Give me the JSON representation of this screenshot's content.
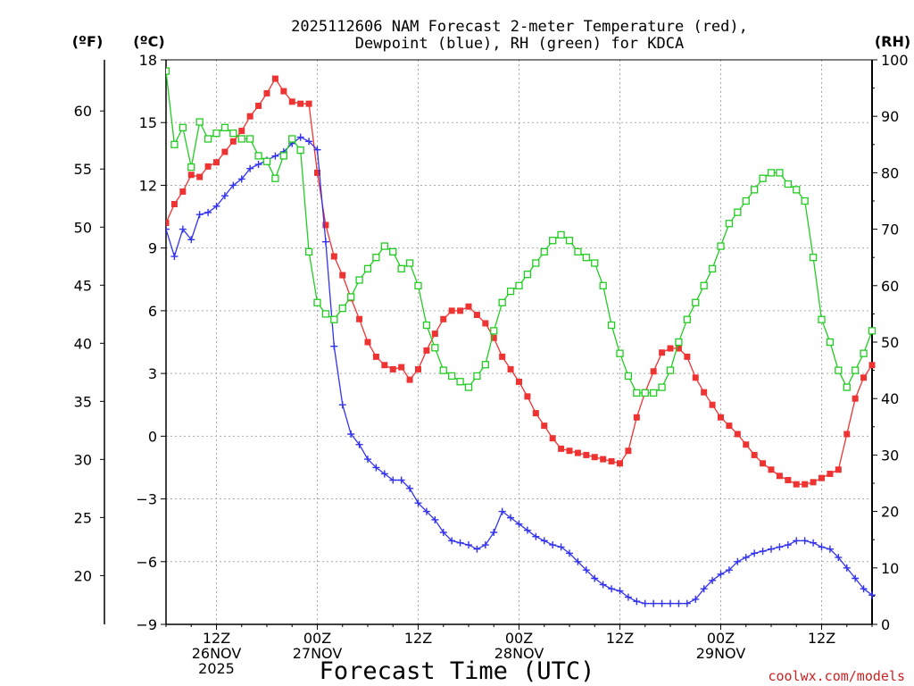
{
  "chart_data": {
    "type": "line",
    "title_line1": "2025112606 NAM Forecast 2-meter Temperature (red),",
    "title_line2": "Dewpoint (blue), RH (green) for KDCA",
    "xlabel": "Forecast Time (UTC)",
    "units": {
      "fahrenheit": "(ºF)",
      "celsius": "(ºC)",
      "rh": "(RH)"
    },
    "credit": "coolwx.com/models",
    "x_range_hours": [
      0,
      84
    ],
    "celsius_range": [
      -9,
      18
    ],
    "rh_range": [
      0,
      100
    ],
    "celsius_ticks": [
      "18",
      "15",
      "12",
      "9",
      "6",
      "3",
      "0",
      "−3",
      "−6",
      "−9"
    ],
    "fahrenheit_ticks": [
      "60",
      "55",
      "50",
      "45",
      "40",
      "35",
      "30",
      "25",
      "20"
    ],
    "rh_ticks": [
      "100",
      "90",
      "80",
      "70",
      "60",
      "50",
      "40",
      "30",
      "20",
      "10",
      "0"
    ],
    "time_ticks": [
      {
        "hour": 6,
        "lines": [
          "12Z",
          "26NOV",
          "2025"
        ]
      },
      {
        "hour": 18,
        "lines": [
          "00Z",
          "27NOV"
        ]
      },
      {
        "hour": 30,
        "lines": [
          "12Z"
        ]
      },
      {
        "hour": 42,
        "lines": [
          "00Z",
          "28NOV"
        ]
      },
      {
        "hour": 54,
        "lines": [
          "12Z"
        ]
      },
      {
        "hour": 66,
        "lines": [
          "00Z",
          "29NOV"
        ]
      },
      {
        "hour": 78,
        "lines": [
          "12Z"
        ]
      }
    ],
    "series": [
      {
        "name": "Temperature",
        "unit": "C",
        "color": "#ee3333",
        "marker": "filled-square",
        "x": [
          0,
          1,
          2,
          3,
          4,
          5,
          6,
          7,
          8,
          9,
          10,
          11,
          12,
          13,
          14,
          15,
          16,
          17,
          18,
          19,
          20,
          21,
          22,
          23,
          24,
          25,
          26,
          27,
          28,
          29,
          30,
          31,
          32,
          33,
          34,
          35,
          36,
          37,
          38,
          39,
          40,
          41,
          42,
          43,
          44,
          45,
          46,
          47,
          48,
          49,
          50,
          51,
          52,
          53,
          54,
          55,
          56,
          57,
          58,
          59,
          60,
          61,
          62,
          63,
          64,
          65,
          66,
          67,
          68,
          69,
          70,
          71,
          72,
          73,
          74,
          75,
          76,
          77,
          78,
          79,
          80,
          81,
          82,
          83,
          84
        ],
        "values": [
          10.2,
          11.1,
          11.7,
          12.5,
          12.4,
          12.9,
          13.1,
          13.6,
          14.1,
          14.6,
          15.3,
          15.8,
          16.4,
          17.1,
          16.5,
          16.0,
          15.9,
          15.9,
          12.6,
          10.1,
          8.6,
          7.7,
          6.6,
          5.6,
          4.5,
          3.8,
          3.4,
          3.2,
          3.3,
          2.7,
          3.2,
          4.1,
          4.9,
          5.6,
          6.0,
          6.0,
          6.2,
          5.8,
          5.4,
          4.7,
          3.8,
          3.2,
          2.6,
          1.9,
          1.1,
          0.5,
          -0.1,
          -0.6,
          -0.7,
          -0.8,
          -0.9,
          -1.0,
          -1.1,
          -1.2,
          -1.3,
          -0.7,
          0.9,
          2.1,
          3.1,
          4.0,
          4.2,
          4.2,
          3.8,
          2.8,
          2.1,
          1.5,
          0.9,
          0.5,
          0.1,
          -0.4,
          -0.9,
          -1.3,
          -1.6,
          -1.9,
          -2.1,
          -2.3,
          -2.3,
          -2.2,
          -2.0,
          -1.8,
          -1.6,
          0.1,
          1.8,
          2.8,
          3.4
        ]
      },
      {
        "name": "Dewpoint",
        "unit": "C",
        "color": "#3333ee",
        "marker": "plus",
        "x": [
          0,
          1,
          2,
          3,
          4,
          5,
          6,
          7,
          8,
          9,
          10,
          11,
          12,
          13,
          14,
          15,
          16,
          17,
          18,
          19,
          20,
          21,
          22,
          23,
          24,
          25,
          26,
          27,
          28,
          29,
          30,
          31,
          32,
          33,
          34,
          35,
          36,
          37,
          38,
          39,
          40,
          41,
          42,
          43,
          44,
          45,
          46,
          47,
          48,
          49,
          50,
          51,
          52,
          53,
          54,
          55,
          56,
          57,
          58,
          59,
          60,
          61,
          62,
          63,
          64,
          65,
          66,
          67,
          68,
          69,
          70,
          71,
          72,
          73,
          74,
          75,
          76,
          77,
          78,
          79,
          80,
          81,
          82,
          83,
          84
        ],
        "values": [
          9.9,
          8.6,
          9.9,
          9.4,
          10.6,
          10.7,
          11.0,
          11.5,
          12.0,
          12.3,
          12.8,
          13.0,
          13.2,
          13.4,
          13.6,
          14.0,
          14.3,
          14.1,
          13.7,
          9.3,
          4.3,
          1.5,
          0.1,
          -0.4,
          -1.1,
          -1.5,
          -1.8,
          -2.1,
          -2.1,
          -2.5,
          -3.2,
          -3.6,
          -4.0,
          -4.6,
          -5.0,
          -5.1,
          -5.2,
          -5.4,
          -5.2,
          -4.6,
          -3.6,
          -3.9,
          -4.2,
          -4.5,
          -4.8,
          -5.0,
          -5.2,
          -5.3,
          -5.6,
          -6.0,
          -6.4,
          -6.8,
          -7.1,
          -7.3,
          -7.4,
          -7.7,
          -7.9,
          -8.0,
          -8.0,
          -8.0,
          -8.0,
          -8.0,
          -8.0,
          -7.8,
          -7.3,
          -6.9,
          -6.6,
          -6.4,
          -6.0,
          -5.8,
          -5.6,
          -5.5,
          -5.4,
          -5.3,
          -5.2,
          -5.0,
          -5.0,
          -5.1,
          -5.3,
          -5.4,
          -5.8,
          -6.3,
          -6.8,
          -7.3,
          -7.6
        ]
      },
      {
        "name": "RH",
        "unit": "%",
        "color": "#22cc22",
        "marker": "open-square",
        "x": [
          0,
          1,
          2,
          3,
          4,
          5,
          6,
          7,
          8,
          9,
          10,
          11,
          12,
          13,
          14,
          15,
          16,
          17,
          18,
          19,
          20,
          21,
          22,
          23,
          24,
          25,
          26,
          27,
          28,
          29,
          30,
          31,
          32,
          33,
          34,
          35,
          36,
          37,
          38,
          39,
          40,
          41,
          42,
          43,
          44,
          45,
          46,
          47,
          48,
          49,
          50,
          51,
          52,
          53,
          54,
          55,
          56,
          57,
          58,
          59,
          60,
          61,
          62,
          63,
          64,
          65,
          66,
          67,
          68,
          69,
          70,
          71,
          72,
          73,
          74,
          75,
          76,
          77,
          78,
          79,
          80,
          81,
          82,
          83,
          84
        ],
        "values": [
          98,
          85,
          88,
          81,
          89,
          86,
          87,
          88,
          87,
          86,
          86,
          83,
          82,
          79,
          83,
          86,
          84,
          66,
          57,
          55,
          54,
          56,
          58,
          61,
          63,
          65,
          67,
          66,
          63,
          64,
          60,
          53,
          49,
          45,
          44,
          43,
          42,
          44,
          46,
          52,
          57,
          59,
          60,
          62,
          64,
          66,
          68,
          69,
          68,
          66,
          65,
          64,
          60,
          53,
          48,
          44,
          41,
          41,
          41,
          42,
          45,
          50,
          54,
          57,
          60,
          63,
          67,
          71,
          73,
          75,
          77,
          79,
          80,
          80,
          78,
          77,
          75,
          65,
          54,
          50,
          45,
          42,
          45,
          48,
          52
        ]
      }
    ]
  }
}
